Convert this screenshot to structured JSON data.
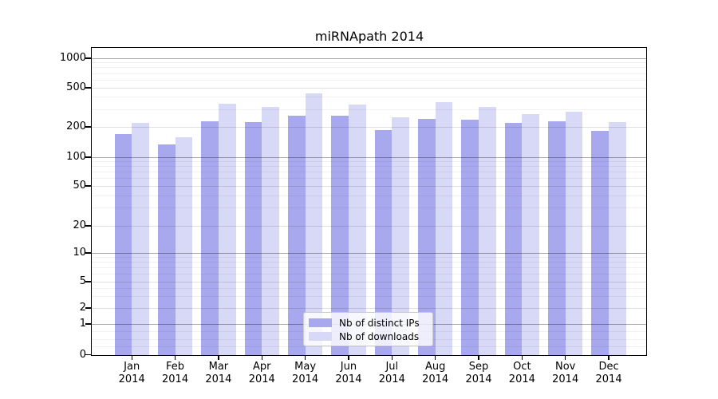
{
  "title": "miRNApath 2014",
  "chart_data": {
    "type": "bar",
    "title": "miRNApath 2014",
    "categories": [
      "Jan 2014",
      "Feb 2014",
      "Mar 2014",
      "Apr 2014",
      "May 2014",
      "Jun 2014",
      "Jul 2014",
      "Aug 2014",
      "Sep 2014",
      "Oct 2014",
      "Nov 2014",
      "Dec 2014"
    ],
    "series": [
      {
        "name": "Nb of distinct IPs",
        "color": "#a8a8ee",
        "values": [
          170,
          135,
          230,
          225,
          262,
          258,
          186,
          240,
          236,
          220,
          228,
          182
        ]
      },
      {
        "name": "Nb of downloads",
        "color": "#d8d8f7",
        "values": [
          220,
          158,
          345,
          320,
          440,
          335,
          250,
          355,
          320,
          270,
          285,
          225
        ]
      }
    ],
    "yscale": "log",
    "yticks": [
      0,
      1,
      2,
      5,
      10,
      20,
      50,
      100,
      200,
      500,
      1000
    ],
    "ylim": [
      0,
      1000
    ],
    "grid": true,
    "legend_position": "lower center",
    "background_color": "#ffffff"
  }
}
